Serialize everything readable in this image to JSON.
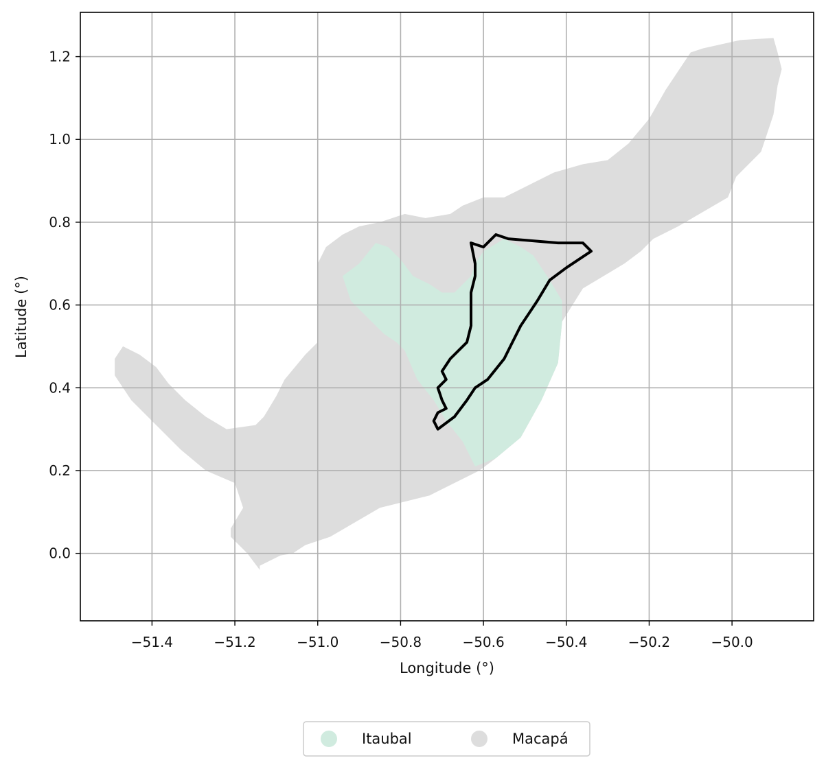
{
  "chart_data": {
    "type": "map",
    "xlabel": "Longitude (°)",
    "ylabel": "Latitude (°)",
    "xlim": [
      -51.573,
      -49.803
    ],
    "ylim": [
      -0.163,
      1.307
    ],
    "xticks": [
      -51.4,
      -51.2,
      -51.0,
      -50.8,
      -50.6,
      -50.4,
      -50.2,
      -50.0
    ],
    "yticks": [
      0.0,
      0.2,
      0.4,
      0.6,
      0.8,
      1.0,
      1.2
    ],
    "x_tick_labels": [
      "−51.4",
      "−51.2",
      "−51.0",
      "−50.8",
      "−50.6",
      "−50.4",
      "−50.2",
      "−50.0"
    ],
    "y_tick_labels": [
      "0.0",
      "0.2",
      "0.4",
      "0.6",
      "0.8",
      "1.0",
      "1.2"
    ],
    "grid": true,
    "legend": {
      "placement": "bottom-center",
      "entries": [
        {
          "label": "Itaubal",
          "color": "#d0ebdf"
        },
        {
          "label": "Macapá",
          "color": "#dddddd"
        }
      ]
    },
    "regions": [
      {
        "name": "Macapá",
        "color": "#dddddd",
        "coords": [
          [
            -51.11,
            -0.097
          ],
          [
            -51.14,
            -0.04
          ],
          [
            -51.14,
            -0.03
          ],
          [
            -51.12,
            -0.02
          ],
          [
            -51.09,
            -0.005
          ],
          [
            -51.06,
            0.0
          ],
          [
            -51.03,
            0.02
          ],
          [
            -50.97,
            0.04
          ],
          [
            -50.85,
            0.11
          ],
          [
            -50.73,
            0.14
          ],
          [
            -50.61,
            0.2
          ],
          [
            -50.57,
            0.23
          ],
          [
            -50.51,
            0.28
          ],
          [
            -50.46,
            0.37
          ],
          [
            -50.42,
            0.46
          ],
          [
            -50.41,
            0.56
          ],
          [
            -50.36,
            0.64
          ],
          [
            -50.26,
            0.7
          ],
          [
            -50.22,
            0.73
          ],
          [
            -50.19,
            0.76
          ],
          [
            -50.13,
            0.79
          ],
          [
            -50.01,
            0.86
          ],
          [
            -49.99,
            0.91
          ],
          [
            -49.93,
            0.97
          ],
          [
            -49.9,
            1.06
          ],
          [
            -49.89,
            1.13
          ],
          [
            -49.88,
            1.17
          ],
          [
            -49.89,
            1.21
          ],
          [
            -49.9,
            1.245
          ],
          [
            -49.98,
            1.24
          ],
          [
            -50.07,
            1.22
          ],
          [
            -50.1,
            1.21
          ],
          [
            -50.16,
            1.12
          ],
          [
            -50.2,
            1.05
          ],
          [
            -50.25,
            0.99
          ],
          [
            -50.3,
            0.95
          ],
          [
            -50.36,
            0.94
          ],
          [
            -50.43,
            0.92
          ],
          [
            -50.49,
            0.89
          ],
          [
            -50.55,
            0.86
          ],
          [
            -50.6,
            0.86
          ],
          [
            -50.65,
            0.84
          ],
          [
            -50.68,
            0.82
          ],
          [
            -50.74,
            0.81
          ],
          [
            -50.79,
            0.82
          ],
          [
            -50.85,
            0.8
          ],
          [
            -50.9,
            0.79
          ],
          [
            -50.94,
            0.77
          ],
          [
            -50.98,
            0.74
          ],
          [
            -51.0,
            0.7
          ],
          [
            -51.0,
            0.63
          ],
          [
            -51.0,
            0.55
          ],
          [
            -51.0,
            0.51
          ],
          [
            -51.03,
            0.48
          ],
          [
            -51.08,
            0.42
          ],
          [
            -51.1,
            0.38
          ],
          [
            -51.13,
            0.33
          ],
          [
            -51.15,
            0.31
          ],
          [
            -51.22,
            0.3
          ],
          [
            -51.27,
            0.33
          ],
          [
            -51.32,
            0.37
          ],
          [
            -51.36,
            0.41
          ],
          [
            -51.39,
            0.45
          ],
          [
            -51.43,
            0.48
          ],
          [
            -51.47,
            0.5
          ],
          [
            -51.49,
            0.47
          ],
          [
            -51.49,
            0.43
          ],
          [
            -51.45,
            0.37
          ],
          [
            -51.4,
            0.32
          ],
          [
            -51.33,
            0.25
          ],
          [
            -51.27,
            0.2
          ],
          [
            -51.2,
            0.17
          ],
          [
            -51.18,
            0.11
          ],
          [
            -51.21,
            0.06
          ],
          [
            -51.21,
            0.04
          ],
          [
            -51.17,
            0.0
          ],
          [
            -51.14,
            -0.04
          ]
        ]
      },
      {
        "name": "Itaubal",
        "color": "#d0ebdf",
        "coords": [
          [
            -50.94,
            0.67
          ],
          [
            -50.9,
            0.7
          ],
          [
            -50.86,
            0.75
          ],
          [
            -50.83,
            0.74
          ],
          [
            -50.8,
            0.71
          ],
          [
            -50.77,
            0.67
          ],
          [
            -50.73,
            0.65
          ],
          [
            -50.7,
            0.63
          ],
          [
            -50.67,
            0.63
          ],
          [
            -50.63,
            0.67
          ],
          [
            -50.62,
            0.7
          ],
          [
            -50.6,
            0.73
          ],
          [
            -50.55,
            0.76
          ],
          [
            -50.51,
            0.74
          ],
          [
            -50.48,
            0.72
          ],
          [
            -50.46,
            0.69
          ],
          [
            -50.44,
            0.66
          ],
          [
            -50.41,
            0.61
          ],
          [
            -50.41,
            0.56
          ],
          [
            -50.42,
            0.46
          ],
          [
            -50.46,
            0.37
          ],
          [
            -50.51,
            0.28
          ],
          [
            -50.57,
            0.23
          ],
          [
            -50.62,
            0.21
          ],
          [
            -50.65,
            0.27
          ],
          [
            -50.69,
            0.32
          ],
          [
            -50.72,
            0.37
          ],
          [
            -50.76,
            0.42
          ],
          [
            -50.79,
            0.49
          ],
          [
            -50.81,
            0.51
          ],
          [
            -50.84,
            0.53
          ],
          [
            -50.88,
            0.57
          ],
          [
            -50.92,
            0.61
          ]
        ]
      }
    ],
    "outline": {
      "color": "#000000",
      "coords": [
        [
          -50.71,
          0.3
        ],
        [
          -50.72,
          0.32
        ],
        [
          -50.71,
          0.34
        ],
        [
          -50.69,
          0.35
        ],
        [
          -50.7,
          0.37
        ],
        [
          -50.71,
          0.4
        ],
        [
          -50.69,
          0.42
        ],
        [
          -50.7,
          0.44
        ],
        [
          -50.68,
          0.47
        ],
        [
          -50.64,
          0.51
        ],
        [
          -50.63,
          0.55
        ],
        [
          -50.63,
          0.63
        ],
        [
          -50.62,
          0.67
        ],
        [
          -50.62,
          0.7
        ],
        [
          -50.63,
          0.75
        ],
        [
          -50.6,
          0.74
        ],
        [
          -50.59,
          0.75
        ],
        [
          -50.57,
          0.77
        ],
        [
          -50.54,
          0.76
        ],
        [
          -50.48,
          0.755
        ],
        [
          -50.42,
          0.75
        ],
        [
          -50.36,
          0.75
        ],
        [
          -50.34,
          0.73
        ],
        [
          -50.4,
          0.69
        ],
        [
          -50.44,
          0.66
        ],
        [
          -50.47,
          0.61
        ],
        [
          -50.49,
          0.58
        ],
        [
          -50.51,
          0.55
        ],
        [
          -50.53,
          0.51
        ],
        [
          -50.55,
          0.47
        ],
        [
          -50.59,
          0.42
        ],
        [
          -50.62,
          0.4
        ],
        [
          -50.64,
          0.37
        ],
        [
          -50.67,
          0.33
        ]
      ]
    }
  }
}
